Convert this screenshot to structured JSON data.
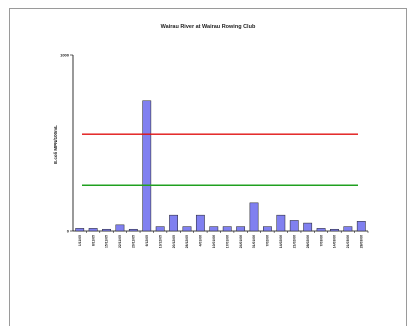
{
  "chart_data": {
    "type": "bar",
    "title": "Wairau River at Wairau Rowing Club",
    "ylabel": "E.coli MPN/100mL",
    "xlabel": "",
    "ylim": [
      0,
      1000
    ],
    "yticks": [
      0,
      1000
    ],
    "categories": [
      "1/11/05",
      "8/11/05",
      "15/11/05",
      "22/11/05",
      "29/11/05",
      "6/12/05",
      "13/12/05",
      "20/12/05",
      "28/12/05",
      "4/01/06",
      "10/01/06",
      "17/01/06",
      "24/01/06",
      "31/01/06",
      "7/02/06",
      "14/02/06",
      "21/02/06",
      "28/02/06",
      "7/03/06",
      "14/03/06",
      "21/03/06",
      "28/03/06"
    ],
    "values": [
      15,
      15,
      10,
      35,
      10,
      740,
      25,
      90,
      25,
      90,
      25,
      25,
      25,
      160,
      25,
      90,
      60,
      45,
      15,
      10,
      25,
      55
    ],
    "bar_color": "#8080f0",
    "reference_lines": [
      {
        "value": 550,
        "color": "#e01010"
      },
      {
        "value": 260,
        "color": "#20a020"
      }
    ]
  }
}
